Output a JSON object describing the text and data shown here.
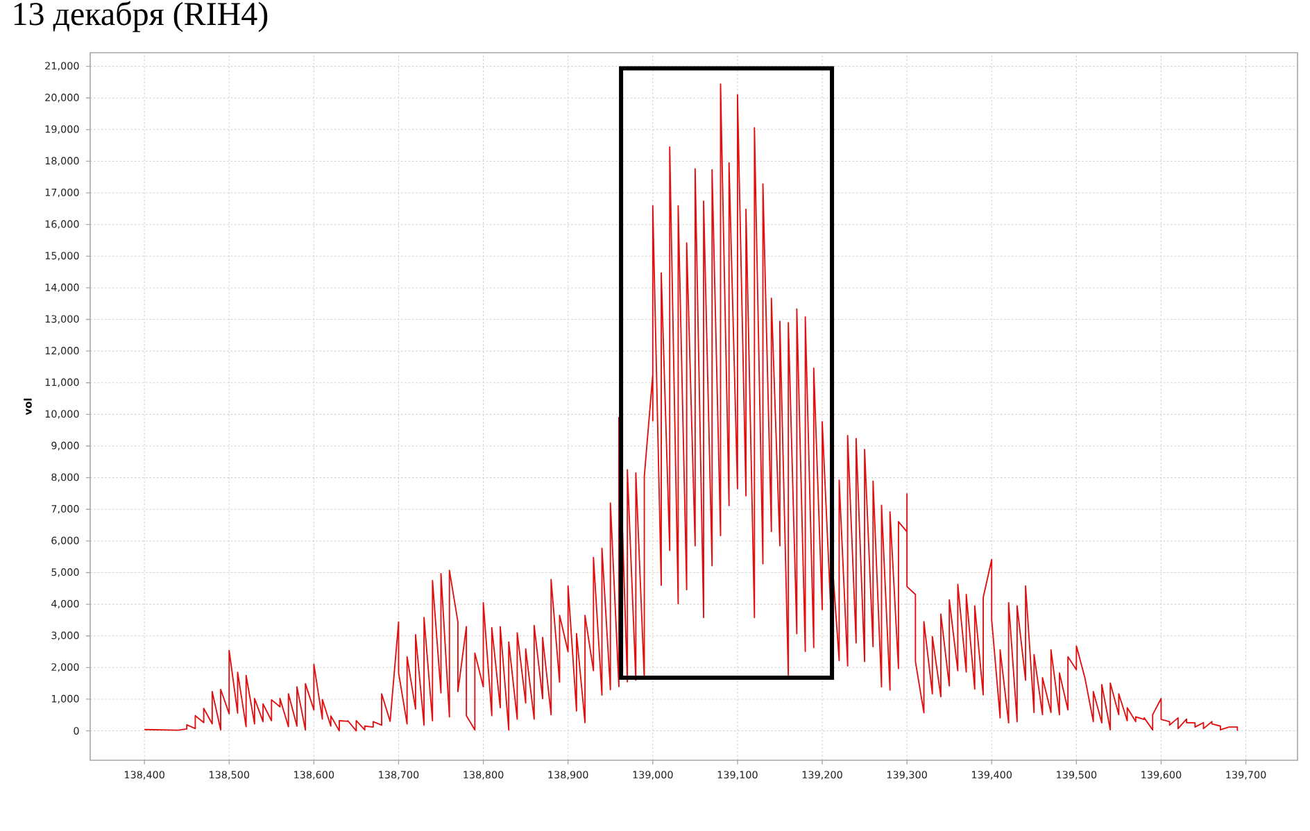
{
  "chart_data": {
    "type": "line",
    "title": "13 декабря (RIH4)",
    "ylabel": "vol",
    "color": "#e01010",
    "x": [
      138400,
      138440,
      138450,
      138450,
      138460,
      138460,
      138470,
      138470,
      138480,
      138480,
      138490,
      138490,
      138500,
      138500,
      138510,
      138510,
      138520,
      138520,
      138530,
      138530,
      138540,
      138540,
      138550,
      138550,
      138560,
      138560,
      138570,
      138570,
      138580,
      138580,
      138590,
      138590,
      138600,
      138600,
      138610,
      138610,
      138620,
      138620,
      138630,
      138630,
      138640,
      138640,
      138650,
      138650,
      138660,
      138660,
      138670,
      138670,
      138680,
      138680,
      138690,
      138700,
      138700,
      138710,
      138710,
      138720,
      138720,
      138730,
      138730,
      138740,
      138740,
      138750,
      138750,
      138760,
      138760,
      138770,
      138770,
      138780,
      138780,
      138790,
      138790,
      138800,
      138800,
      138810,
      138810,
      138820,
      138820,
      138830,
      138830,
      138840,
      138840,
      138850,
      138850,
      138860,
      138860,
      138870,
      138870,
      138880,
      138880,
      138890,
      138890,
      138900,
      138900,
      138910,
      138910,
      138920,
      138920,
      138930,
      138930,
      138940,
      138940,
      138950,
      138950,
      138960,
      138960,
      138970,
      138970,
      138980,
      138980,
      138990,
      138990,
      139000,
      139000,
      139000,
      139010,
      139010,
      139020,
      139020,
      139030,
      139030,
      139040,
      139040,
      139050,
      139050,
      139060,
      139060,
      139070,
      139070,
      139080,
      139080,
      139090,
      139090,
      139100,
      139100,
      139110,
      139110,
      139120,
      139120,
      139130,
      139130,
      139140,
      139140,
      139150,
      139150,
      139160,
      139160,
      139170,
      139170,
      139180,
      139180,
      139190,
      139190,
      139200,
      139200,
      139210,
      139210,
      139220,
      139220,
      139230,
      139230,
      139240,
      139240,
      139250,
      139250,
      139260,
      139260,
      139270,
      139270,
      139280,
      139280,
      139290,
      139290,
      139300,
      139300,
      139300,
      139310,
      139310,
      139320,
      139320,
      139330,
      139330,
      139340,
      139340,
      139350,
      139350,
      139360,
      139360,
      139370,
      139370,
      139380,
      139380,
      139390,
      139390,
      139400,
      139400,
      139410,
      139410,
      139420,
      139420,
      139430,
      139430,
      139440,
      139440,
      139450,
      139450,
      139460,
      139460,
      139470,
      139470,
      139480,
      139480,
      139490,
      139490,
      139500,
      139500,
      139510,
      139520,
      139520,
      139530,
      139530,
      139540,
      139540,
      139550,
      139550,
      139560,
      139560,
      139570,
      139570,
      139580,
      139580,
      139590,
      139590,
      139600,
      139600,
      139610,
      139610,
      139620,
      139620,
      139630,
      139630,
      139640,
      139640,
      139650,
      139650,
      139660,
      139660,
      139670,
      139670,
      139680,
      139690,
      139690
    ],
    "values": [
      40,
      20,
      60,
      190,
      70,
      480,
      260,
      710,
      220,
      1240,
      30,
      1310,
      540,
      2540,
      560,
      1850,
      130,
      1750,
      220,
      1020,
      290,
      850,
      320,
      980,
      760,
      1020,
      130,
      1170,
      150,
      1390,
      30,
      1490,
      660,
      2100,
      370,
      990,
      150,
      470,
      0,
      320,
      300,
      320,
      0,
      320,
      30,
      150,
      120,
      290,
      180,
      1170,
      300,
      3440,
      1830,
      220,
      2340,
      690,
      3040,
      180,
      3580,
      320,
      4750,
      1200,
      4970,
      440,
      5070,
      3440,
      1240,
      3290,
      480,
      30,
      2460,
      1390,
      4050,
      480,
      3260,
      730,
      3290,
      30,
      2810,
      370,
      3100,
      880,
      2590,
      370,
      3330,
      1020,
      2950,
      510,
      4780,
      1540,
      3650,
      2500,
      4580,
      630,
      3070,
      260,
      3650,
      1900,
      5480,
      1130,
      5770,
      1300,
      7200,
      1400,
      9900,
      1550,
      8250,
      1600,
      8150,
      1640,
      8040,
      11260,
      9800,
      16590,
      4600,
      14470,
      5700,
      18450,
      4020,
      16590,
      4460,
      15420,
      5850,
      17760,
      3580,
      16740,
      5220,
      17730,
      6170,
      20440,
      7120,
      17950,
      7650,
      20100,
      7430,
      16480,
      3580,
      19060,
      5280,
      17280,
      6300,
      13670,
      5850,
      12940,
      1700,
      12900,
      3070,
      13330,
      2510,
      13080,
      2630,
      11460,
      3830,
      9770,
      3900,
      6000,
      2220,
      7920,
      2050,
      9330,
      2780,
      9240,
      2190,
      8890,
      2660,
      7890,
      1390,
      7130,
      1290,
      6920,
      1970,
      6610,
      6290,
      7490,
      4560,
      4310,
      2190,
      570,
      3450,
      1170,
      2980,
      1080,
      3690,
      1420,
      4140,
      1900,
      4630,
      1860,
      4310,
      1320,
      3950,
      1140,
      4210,
      5410,
      3510,
      410,
      2560,
      250,
      4050,
      290,
      3950,
      1600,
      4580,
      580,
      2410,
      510,
      1680,
      580,
      2560,
      510,
      1830,
      660,
      2340,
      1930,
      2680,
      1680,
      290,
      1240,
      250,
      1460,
      30,
      1510,
      510,
      1170,
      320,
      730,
      290,
      440,
      360,
      410,
      30,
      510,
      1020,
      360,
      290,
      180,
      410,
      70,
      370,
      260,
      250,
      120,
      260,
      70,
      290,
      220,
      150,
      30,
      120,
      120,
      0
    ],
    "xlim": [
      138336,
      139761
    ],
    "ylim": [
      -930,
      21430
    ],
    "xticks": [
      {
        "value": 138400,
        "label": "138,400"
      },
      {
        "value": 138500,
        "label": "138,500"
      },
      {
        "value": 138600,
        "label": "138,600"
      },
      {
        "value": 138700,
        "label": "138,700"
      },
      {
        "value": 138800,
        "label": "138,800"
      },
      {
        "value": 138900,
        "label": "138,900"
      },
      {
        "value": 139000,
        "label": "139,000"
      },
      {
        "value": 139100,
        "label": "139,100"
      },
      {
        "value": 139200,
        "label": "139,200"
      },
      {
        "value": 139300,
        "label": "139,300"
      },
      {
        "value": 139400,
        "label": "139,400"
      },
      {
        "value": 139500,
        "label": "139,500"
      },
      {
        "value": 139600,
        "label": "139,600"
      },
      {
        "value": 139700,
        "label": "139,700"
      }
    ],
    "yticks": [
      0,
      {
        "value": 1000,
        "label": "1,000"
      },
      {
        "value": 2000,
        "label": "2,000"
      },
      {
        "value": 3000,
        "label": "3,000"
      },
      {
        "value": 4000,
        "label": "4,000"
      },
      {
        "value": 5000,
        "label": "5,000"
      },
      {
        "value": 6000,
        "label": "6,000"
      },
      {
        "value": 7000,
        "label": "7,000"
      },
      {
        "value": 8000,
        "label": "8,000"
      },
      {
        "value": 9000,
        "label": "9,000"
      },
      {
        "value": 10000,
        "label": "10,000"
      },
      {
        "value": 11000,
        "label": "11,000"
      },
      {
        "value": 12000,
        "label": "12,000"
      },
      {
        "value": 13000,
        "label": "13,000"
      },
      {
        "value": 14000,
        "label": "14,000"
      },
      {
        "value": 15000,
        "label": "15,000"
      },
      {
        "value": 16000,
        "label": "16,000"
      },
      {
        "value": 17000,
        "label": "17,000"
      },
      {
        "value": 18000,
        "label": "18,000"
      },
      {
        "value": 19000,
        "label": "19,000"
      },
      {
        "value": 20000,
        "label": "20,000"
      },
      {
        "value": 21000,
        "label": "21,000"
      }
    ],
    "grid": true
  }
}
